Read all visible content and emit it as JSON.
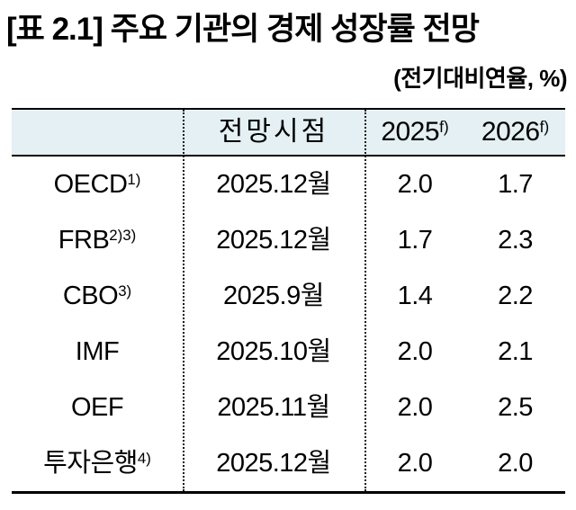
{
  "title": "[표 2.1] 주요 기관의 경제 성장률 전망",
  "unit_note": "(전기대비연율, %)",
  "colors": {
    "header_bg": "#e4f0f3",
    "rule": "#000000",
    "text": "#000000"
  },
  "table": {
    "headers": {
      "institution": "",
      "forecast_time": "전망시점",
      "col2025": {
        "text": "2025",
        "sup": "f)"
      },
      "col2026": {
        "text": "2026",
        "sup": "f)"
      }
    },
    "rows": [
      {
        "institution": "OECD",
        "sup": "1)",
        "time": "2025.12월",
        "v2025": "2.0",
        "v2026": "1.7"
      },
      {
        "institution": "FRB",
        "sup": "2)3)",
        "time": "2025.12월",
        "v2025": "1.7",
        "v2026": "2.3"
      },
      {
        "institution": "CBO",
        "sup": "3)",
        "time": "2025.9월",
        "v2025": "1.4",
        "v2026": "2.2"
      },
      {
        "institution": "IMF",
        "sup": "",
        "time": "2025.10월",
        "v2025": "2.0",
        "v2026": "2.1"
      },
      {
        "institution": "OEF",
        "sup": "",
        "time": "2025.11월",
        "v2025": "2.0",
        "v2026": "2.5"
      },
      {
        "institution": "투자은행",
        "sup": "4)",
        "time": "2025.12월",
        "v2025": "2.0",
        "v2026": "2.0"
      }
    ]
  }
}
